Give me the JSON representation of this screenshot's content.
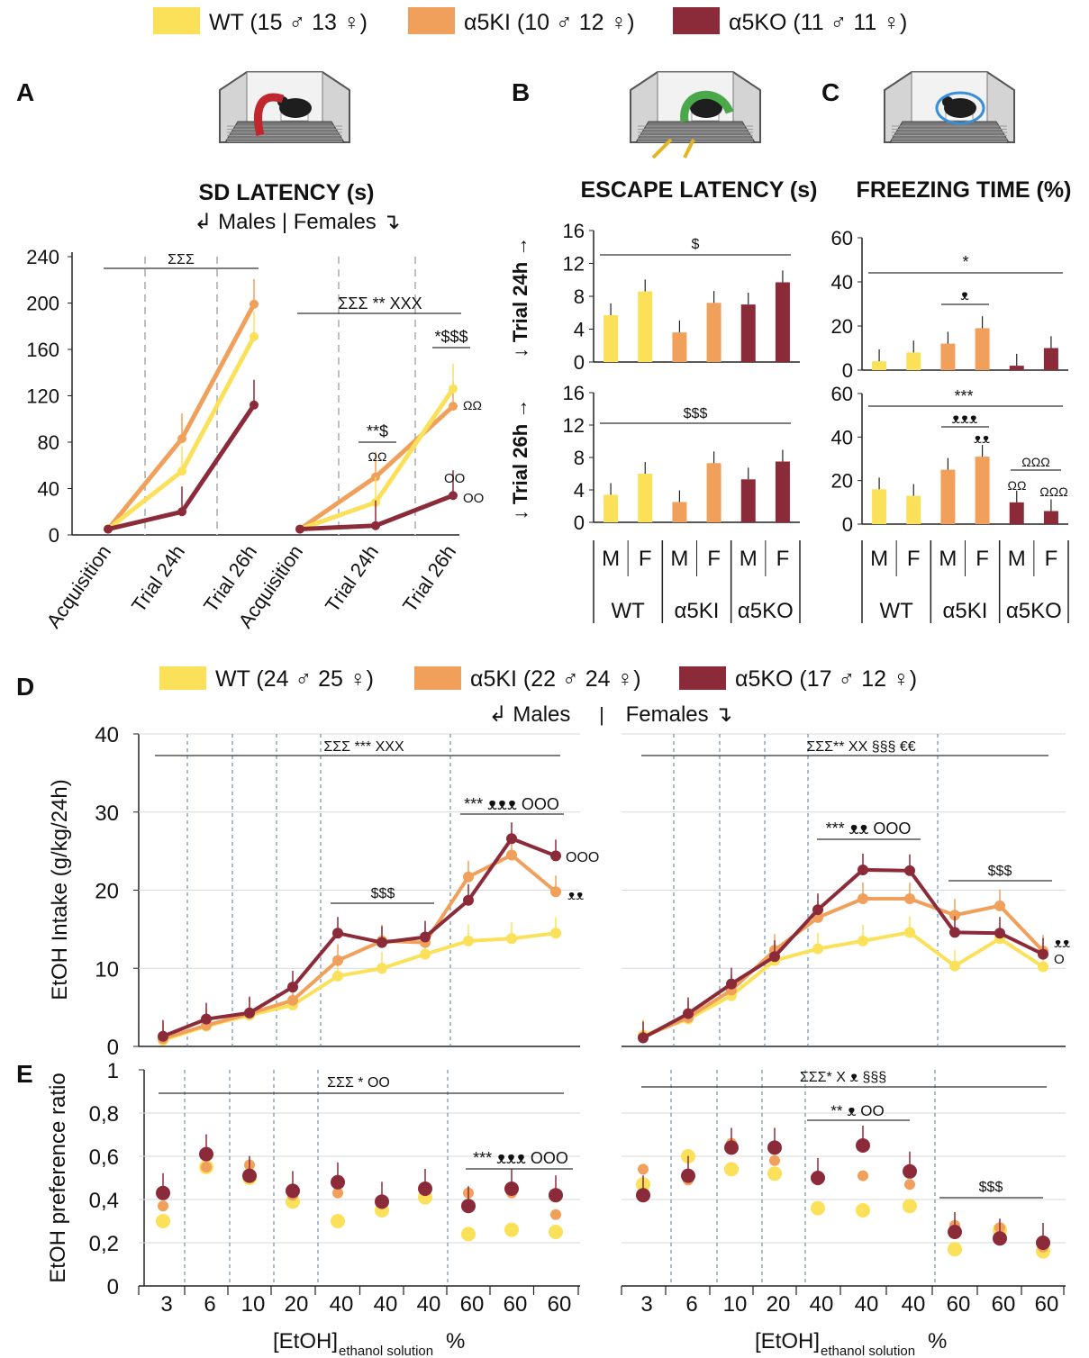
{
  "colors": {
    "WT": "#fbe05a",
    "KI": "#f0a05a",
    "KO": "#8b2b3a",
    "axis": "#222222",
    "grid": "#d9d9d9",
    "dashed_grey": "#bfbfbf",
    "dashed_blue": "#5a7a9a"
  },
  "legend_top": [
    {
      "key": "WT",
      "label": "WT (15 ♂ 13 ♀)"
    },
    {
      "key": "KI",
      "label": "α5KI (10 ♂ 12 ♀)"
    },
    {
      "key": "KO",
      "label": "α5KO (11 ♂ 11 ♀)"
    }
  ],
  "legend_bottom": [
    {
      "key": "WT",
      "label": "WT (24 ♂ 25 ♀)"
    },
    {
      "key": "KI",
      "label": "α5KI (22 ♂ 24 ♀)"
    },
    {
      "key": "KO",
      "label": "α5KO (17 ♂ 12 ♀)"
    }
  ],
  "panel_letters": {
    "A": "A",
    "B": "B",
    "C": "C",
    "D": "D",
    "E": "E"
  },
  "illustrations": {
    "A": "mouse-stepdown-icon",
    "B": "mouse-escape-icon",
    "C": "mouse-freezing-icon"
  },
  "sex_labels": {
    "A": "↲ Males | Females ↴",
    "D_males": "↲ Males",
    "D_sep": "|",
    "D_females": "Females ↴"
  },
  "chart_data": [
    {
      "id": "A",
      "type": "line",
      "title": "SD LATENCY (s)",
      "ylim": [
        0,
        240
      ],
      "yticks": [
        "240",
        "200",
        "160",
        "120",
        "80",
        "40",
        "0"
      ],
      "categories": [
        "Acquisition",
        "Trial 24h",
        "Trial 26h"
      ],
      "males": [
        {
          "name": "WT",
          "values": [
            5,
            55,
            171
          ]
        },
        {
          "name": "α5KI",
          "values": [
            5,
            83,
            199
          ]
        },
        {
          "name": "α5KO",
          "values": [
            5,
            20,
            112
          ]
        }
      ],
      "females": [
        {
          "name": "WT",
          "values": [
            5,
            28,
            126
          ]
        },
        {
          "name": "α5KI",
          "values": [
            5,
            50,
            111
          ]
        },
        {
          "name": "α5KO",
          "values": [
            5,
            8,
            34
          ]
        }
      ],
      "annotations": {
        "males_line": "ΣΣΣ",
        "females_line": "ΣΣΣ ** ΧΧΧ",
        "t24_f": "**$",
        "t24_f_sub": "ΩΩ",
        "t26_f": "*$$$",
        "t26_ki": "ΩΩ",
        "t26_ko_top": "OO",
        "t26_ko": "OO"
      }
    },
    {
      "id": "B",
      "type": "bar",
      "title": "ESCAPE LATENCY (s)",
      "ylim": [
        0,
        16
      ],
      "yticks": [
        "16",
        "12",
        "8",
        "4",
        "0"
      ],
      "row_labels": [
        "↓ Trial 24h →",
        "↓ Trial 26h →"
      ],
      "groups": [
        "WT",
        "α5KI",
        "α5KO"
      ],
      "sexes": [
        "M",
        "F"
      ],
      "trial24": [
        5.7,
        8.6,
        3.6,
        7.2,
        7.0,
        9.7
      ],
      "trial26": [
        3.4,
        6.0,
        2.5,
        7.3,
        5.3,
        7.5
      ],
      "annotations": {
        "t24": "$",
        "t26": "$$$"
      }
    },
    {
      "id": "C",
      "type": "bar",
      "title": "FREEZING TIME (%)",
      "ylim": [
        0,
        60
      ],
      "yticks": [
        "60",
        "40",
        "20",
        "0"
      ],
      "groups": [
        "WT",
        "α5KI",
        "α5KO"
      ],
      "sexes": [
        "M",
        "F"
      ],
      "trial24": [
        4,
        8,
        12,
        19,
        2,
        10
      ],
      "trial26": [
        16,
        13,
        25,
        31,
        10,
        6
      ],
      "annotations": {
        "t24_all": "*",
        "t24_ki": "ᴥ",
        "t26_all": "***",
        "t26_ki": "ᴥᴥᴥ",
        "t26_kif": "ᴥᴥ",
        "t26_ko_line": "ΩΩΩ",
        "t26_kom": "ΩΩ",
        "t26_kof": "ΩΩΩ"
      }
    },
    {
      "id": "D",
      "type": "line",
      "ylabel": "EtOH Intake (g/kg/24h)",
      "ylim": [
        0,
        40
      ],
      "yticks": [
        "40",
        "30",
        "20",
        "10",
        "0"
      ],
      "males": [
        {
          "name": "WT",
          "values": [
            0.8,
            2.6,
            4.0,
            5.3,
            9.0,
            10.0,
            11.8,
            13.5,
            13.8,
            14.5
          ]
        },
        {
          "name": "α5KI",
          "values": [
            1.0,
            2.7,
            4.2,
            5.9,
            11.0,
            13.5,
            13.3,
            21.7,
            24.5,
            19.8
          ]
        },
        {
          "name": "α5KO",
          "values": [
            1.3,
            3.5,
            4.3,
            7.6,
            14.5,
            13.3,
            14.0,
            18.7,
            26.6,
            24.4
          ]
        }
      ],
      "females": [
        {
          "name": "WT",
          "values": [
            1.4,
            3.5,
            6.5,
            11.0,
            12.5,
            13.5,
            14.6,
            10.3,
            13.8,
            10.2
          ]
        },
        {
          "name": "α5KI",
          "values": [
            1.2,
            3.7,
            7.2,
            12.3,
            16.5,
            18.9,
            18.9,
            16.8,
            18.0,
            12.2
          ]
        },
        {
          "name": "α5KO",
          "values": [
            1.1,
            4.2,
            8.0,
            11.5,
            17.5,
            22.6,
            22.5,
            14.6,
            14.5,
            11.8
          ]
        }
      ],
      "annotations": {
        "m_line": "ΣΣΣ *** ΧΧΧ",
        "m_40": "$$$",
        "m_60": "*** ᴥᴥᴥ OOO",
        "m_ko_end": "OOO",
        "m_ki_end": "ᴥᴥ",
        "f_line": "ΣΣΣ** ΧΧ §§§ €€",
        "f_40": "*** ᴥᴥ OOO",
        "f_60": "$$$",
        "f_end1": "ᴥᴥ",
        "f_end2": "O"
      }
    },
    {
      "id": "E",
      "type": "scatter",
      "ylabel": "EtOH preference ratio",
      "ylim": [
        0,
        1
      ],
      "yticks": [
        "1",
        "0,8",
        "0,6",
        "0,4",
        "0,2",
        "0"
      ],
      "xlabel": "[EtOH]",
      "xlabel_sub": "ethanol solution",
      "xlabel_unit": "%",
      "x_categories": [
        "3",
        "6",
        "10",
        "20",
        "40",
        "40",
        "40",
        "60",
        "60",
        "60"
      ],
      "males": [
        {
          "name": "WT",
          "values": [
            0.3,
            0.55,
            0.5,
            0.39,
            0.3,
            0.35,
            0.41,
            0.24,
            0.26,
            0.25
          ]
        },
        {
          "name": "α5KI",
          "values": [
            0.37,
            0.55,
            0.56,
            0.42,
            0.43,
            0.38,
            0.44,
            0.43,
            0.43,
            0.33
          ]
        },
        {
          "name": "α5KO",
          "values": [
            0.43,
            0.61,
            0.51,
            0.44,
            0.48,
            0.39,
            0.45,
            0.37,
            0.45,
            0.42
          ]
        }
      ],
      "females": [
        {
          "name": "WT",
          "values": [
            0.47,
            0.6,
            0.54,
            0.52,
            0.36,
            0.35,
            0.37,
            0.17,
            0.26,
            0.16
          ]
        },
        {
          "name": "α5KI",
          "values": [
            0.54,
            0.49,
            0.66,
            0.58,
            0.49,
            0.51,
            0.47,
            0.28,
            0.27,
            0.18
          ]
        },
        {
          "name": "α5KO",
          "values": [
            0.42,
            0.51,
            0.64,
            0.64,
            0.5,
            0.65,
            0.53,
            0.25,
            0.22,
            0.2
          ]
        }
      ],
      "annotations": {
        "m_line": "ΣΣΣ * OO",
        "m_60": "*** ᴥᴥᴥ OOO",
        "f_line": "ΣΣΣ* Χ ᴥ §§§",
        "f_40": "** ᴥ OO",
        "f_60": "$$$"
      }
    }
  ]
}
